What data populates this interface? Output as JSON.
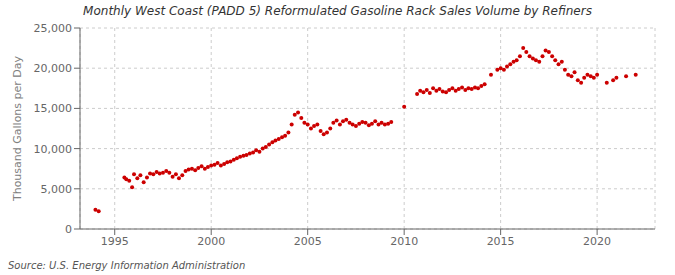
{
  "chart_data": {
    "type": "scatter",
    "title": "Monthly West Coast (PADD 5) Reformulated Gasoline Rack Sales Volume by Refiners",
    "ylabel": "Thousand Gallons per Day",
    "source": "Source: U.S. Energy Information Administration",
    "color": "#cc0000",
    "grid": true,
    "xlim": [
      1993.2,
      2023.0
    ],
    "ylim": [
      0,
      25000
    ],
    "xticks": [
      1995,
      2000,
      2005,
      2010,
      2015,
      2020
    ],
    "yticks": [
      0,
      {
        "value": 5000,
        "label": "5,000"
      },
      {
        "value": 10000,
        "label": "10,000"
      },
      {
        "value": 15000,
        "label": "15,000"
      },
      {
        "value": 20000,
        "label": "20,000"
      },
      {
        "value": 25000,
        "label": "25,000"
      }
    ],
    "x": [
      1994.0,
      1994.17,
      1995.5,
      1995.6,
      1995.75,
      1995.9,
      1996.0,
      1996.17,
      1996.33,
      1996.5,
      1996.67,
      1996.83,
      1997.0,
      1997.17,
      1997.33,
      1997.5,
      1997.67,
      1997.83,
      1998.0,
      1998.17,
      1998.33,
      1998.5,
      1998.67,
      1998.83,
      1999.0,
      1999.17,
      1999.33,
      1999.5,
      1999.67,
      1999.83,
      2000.0,
      2000.17,
      2000.33,
      2000.5,
      2000.67,
      2000.83,
      2001.0,
      2001.17,
      2001.33,
      2001.5,
      2001.67,
      2001.83,
      2002.0,
      2002.17,
      2002.33,
      2002.5,
      2002.67,
      2002.83,
      2003.0,
      2003.17,
      2003.33,
      2003.5,
      2003.67,
      2003.83,
      2004.0,
      2004.17,
      2004.33,
      2004.5,
      2004.67,
      2004.83,
      2005.0,
      2005.17,
      2005.33,
      2005.5,
      2005.67,
      2005.83,
      2006.0,
      2006.17,
      2006.33,
      2006.5,
      2006.67,
      2006.83,
      2007.0,
      2007.17,
      2007.33,
      2007.5,
      2007.67,
      2007.83,
      2008.0,
      2008.17,
      2008.33,
      2008.5,
      2008.67,
      2008.83,
      2009.0,
      2009.17,
      2009.33,
      2010.0,
      2010.67,
      2010.83,
      2011.0,
      2011.17,
      2011.33,
      2011.5,
      2011.67,
      2011.83,
      2012.0,
      2012.17,
      2012.33,
      2012.5,
      2012.67,
      2012.83,
      2013.0,
      2013.17,
      2013.33,
      2013.5,
      2013.67,
      2013.83,
      2014.0,
      2014.17,
      2014.5,
      2014.83,
      2015.0,
      2015.17,
      2015.33,
      2015.5,
      2015.67,
      2015.83,
      2016.0,
      2016.17,
      2016.33,
      2016.5,
      2016.67,
      2016.83,
      2017.0,
      2017.17,
      2017.33,
      2017.5,
      2017.67,
      2017.83,
      2018.0,
      2018.17,
      2018.33,
      2018.5,
      2018.67,
      2018.83,
      2019.0,
      2019.17,
      2019.33,
      2019.5,
      2019.67,
      2019.83,
      2020.0,
      2020.5,
      2020.83,
      2021.0,
      2021.5,
      2022.0
    ],
    "values": [
      2400,
      2200,
      6400,
      6200,
      6000,
      5200,
      6800,
      6300,
      6700,
      5800,
      6400,
      6900,
      6800,
      7100,
      6900,
      7000,
      7200,
      7000,
      6500,
      6800,
      6300,
      6700,
      7200,
      7400,
      7500,
      7300,
      7600,
      7800,
      7500,
      7700,
      7900,
      8000,
      8200,
      7900,
      8100,
      8300,
      8400,
      8600,
      8800,
      9000,
      9100,
      9200,
      9400,
      9500,
      9800,
      9600,
      10000,
      10200,
      10500,
      10800,
      11000,
      11200,
      11400,
      11600,
      12000,
      13000,
      14200,
      14500,
      13800,
      13200,
      13000,
      12500,
      12800,
      13000,
      12200,
      11800,
      12000,
      12500,
      13200,
      13500,
      13000,
      13400,
      13600,
      13200,
      13000,
      12800,
      13100,
      13300,
      13200,
      12900,
      13100,
      13400,
      13000,
      13200,
      13000,
      13100,
      13300,
      15200,
      16800,
      17200,
      17000,
      17300,
      16900,
      17500,
      17200,
      17400,
      17100,
      17000,
      17300,
      17500,
      17200,
      17400,
      17600,
      17300,
      17500,
      17400,
      17600,
      17500,
      17800,
      18000,
      19200,
      19800,
      20000,
      19800,
      20200,
      20500,
      20800,
      21000,
      21500,
      22500,
      22000,
      21500,
      21200,
      21000,
      20800,
      21500,
      22200,
      22000,
      21500,
      21000,
      20500,
      20800,
      19800,
      19200,
      19000,
      19500,
      18500,
      18200,
      18800,
      19200,
      19000,
      18800,
      19200,
      18200,
      18500,
      18800,
      19000,
      19200
    ]
  }
}
